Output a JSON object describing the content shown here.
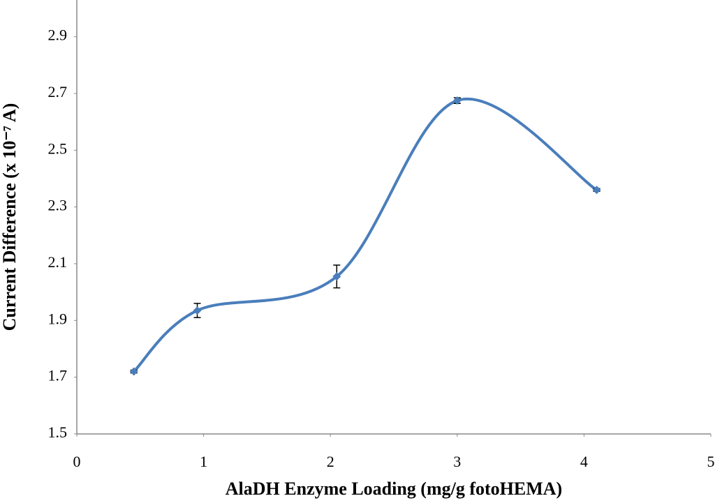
{
  "chart_data": {
    "type": "line",
    "x_label": "AlaDH Enzyme Loading (mg/g fotoHEMA)",
    "y_label": "Current Difference (x 10⁻⁷ A)",
    "x": [
      0.45,
      0.95,
      2.05,
      3.0,
      4.1
    ],
    "series": [
      {
        "name": "Current difference",
        "color": "#4a7ebb",
        "values": [
          1.72,
          1.935,
          2.055,
          2.675,
          2.36
        ],
        "errors": [
          0.005,
          0.025,
          0.04,
          0.01,
          0.005
        ]
      }
    ],
    "xlim": [
      0,
      5
    ],
    "xticks": [
      0,
      1,
      2,
      3,
      4,
      5
    ],
    "ylim": [
      1.5,
      3.0
    ],
    "yticks": [
      1.5,
      1.7,
      1.9,
      2.1,
      2.3,
      2.5,
      2.7,
      2.9
    ],
    "smooth": true,
    "grid": false
  }
}
